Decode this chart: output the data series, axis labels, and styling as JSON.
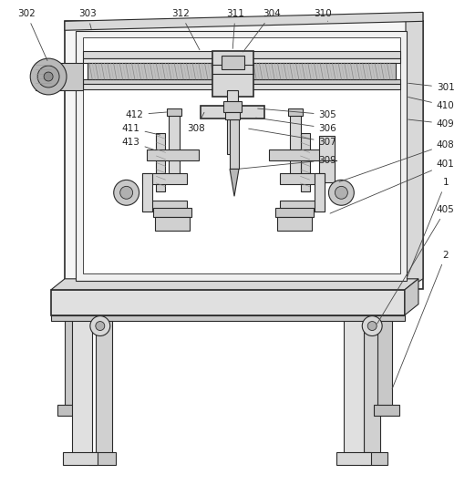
{
  "background_color": "#ffffff",
  "lc": "#2a2a2a",
  "fc_white": "#ffffff",
  "fc_light": "#e8e8e8",
  "fc_mid": "#d0d0d0",
  "fc_dark": "#b8b8b8",
  "fc_darker": "#a0a0a0",
  "label_fs": 7.5,
  "label_color": "#222222"
}
